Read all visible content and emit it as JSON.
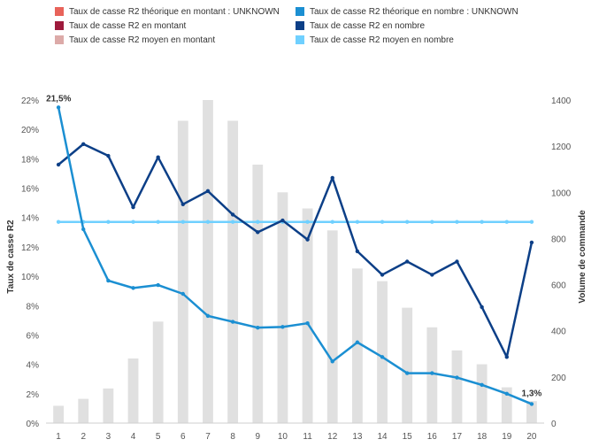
{
  "legend": [
    {
      "label": "Taux de casse R2 théorique en montant : UNKNOWN",
      "color": "#e8635a"
    },
    {
      "label": "Taux de casse R2 en montant",
      "color": "#9e1a3c"
    },
    {
      "label": "Taux de casse R2 moyen en montant",
      "color": "#dcaaa8"
    },
    {
      "label": "Taux de casse R2 théorique en nombre : UNKNOWN",
      "color": "#1b8fd2"
    },
    {
      "label": "Taux de casse R2 en nombre",
      "color": "#0c3f87"
    },
    {
      "label": "Taux de casse R2 moyen en nombre",
      "color": "#6fd0ff"
    }
  ],
  "chart_data": {
    "type": "bar",
    "categories": [
      "1",
      "2",
      "3",
      "4",
      "5",
      "6",
      "7",
      "8",
      "9",
      "10",
      "11",
      "12",
      "13",
      "14",
      "15",
      "16",
      "17",
      "18",
      "19",
      "20"
    ],
    "ylabel": "Taux de casse R2",
    "y2label": "Volume de commande",
    "ylim": [
      0,
      22
    ],
    "y2lim": [
      0,
      1400
    ],
    "yticks": [
      "0%",
      "2%",
      "4%",
      "6%",
      "8%",
      "10%",
      "12%",
      "14%",
      "16%",
      "18%",
      "20%",
      "22%"
    ],
    "y2ticks": [
      "0",
      "200",
      "400",
      "600",
      "800",
      "1000",
      "1200",
      "1400"
    ],
    "bars": {
      "axis": "right",
      "color": "#e0e0e0",
      "values": [
        75,
        105,
        150,
        280,
        440,
        1310,
        1400,
        1310,
        1120,
        1000,
        930,
        835,
        670,
        615,
        500,
        415,
        315,
        255,
        155,
        95
      ]
    },
    "series": [
      {
        "name": "Taux de casse R2 théorique en nombre",
        "color": "#1b8fd2",
        "axis": "left",
        "values": [
          21.5,
          13.2,
          9.7,
          9.2,
          9.4,
          8.8,
          7.3,
          6.9,
          6.5,
          6.55,
          6.8,
          4.2,
          5.5,
          4.5,
          3.4,
          3.4,
          3.1,
          2.6,
          2.0,
          1.3
        ]
      },
      {
        "name": "Taux de casse R2 en nombre",
        "color": "#0c3f87",
        "axis": "left",
        "values": [
          17.6,
          19.0,
          18.2,
          14.7,
          18.1,
          14.9,
          15.8,
          14.2,
          13.0,
          13.8,
          12.5,
          16.7,
          11.7,
          10.1,
          11.0,
          10.1,
          11.0,
          7.9,
          4.5,
          12.3
        ]
      },
      {
        "name": "Taux de casse R2 moyen en nombre",
        "color": "#6fd0ff",
        "axis": "left",
        "values": [
          13.7,
          13.7,
          13.7,
          13.7,
          13.7,
          13.7,
          13.7,
          13.7,
          13.7,
          13.7,
          13.7,
          13.7,
          13.7,
          13.7,
          13.7,
          13.7,
          13.7,
          13.7,
          13.7,
          13.7
        ]
      }
    ],
    "annotations": [
      {
        "text": "21,5%",
        "series": 0,
        "index": 0
      },
      {
        "text": "1,3%",
        "series": 0,
        "index": 19
      }
    ]
  }
}
